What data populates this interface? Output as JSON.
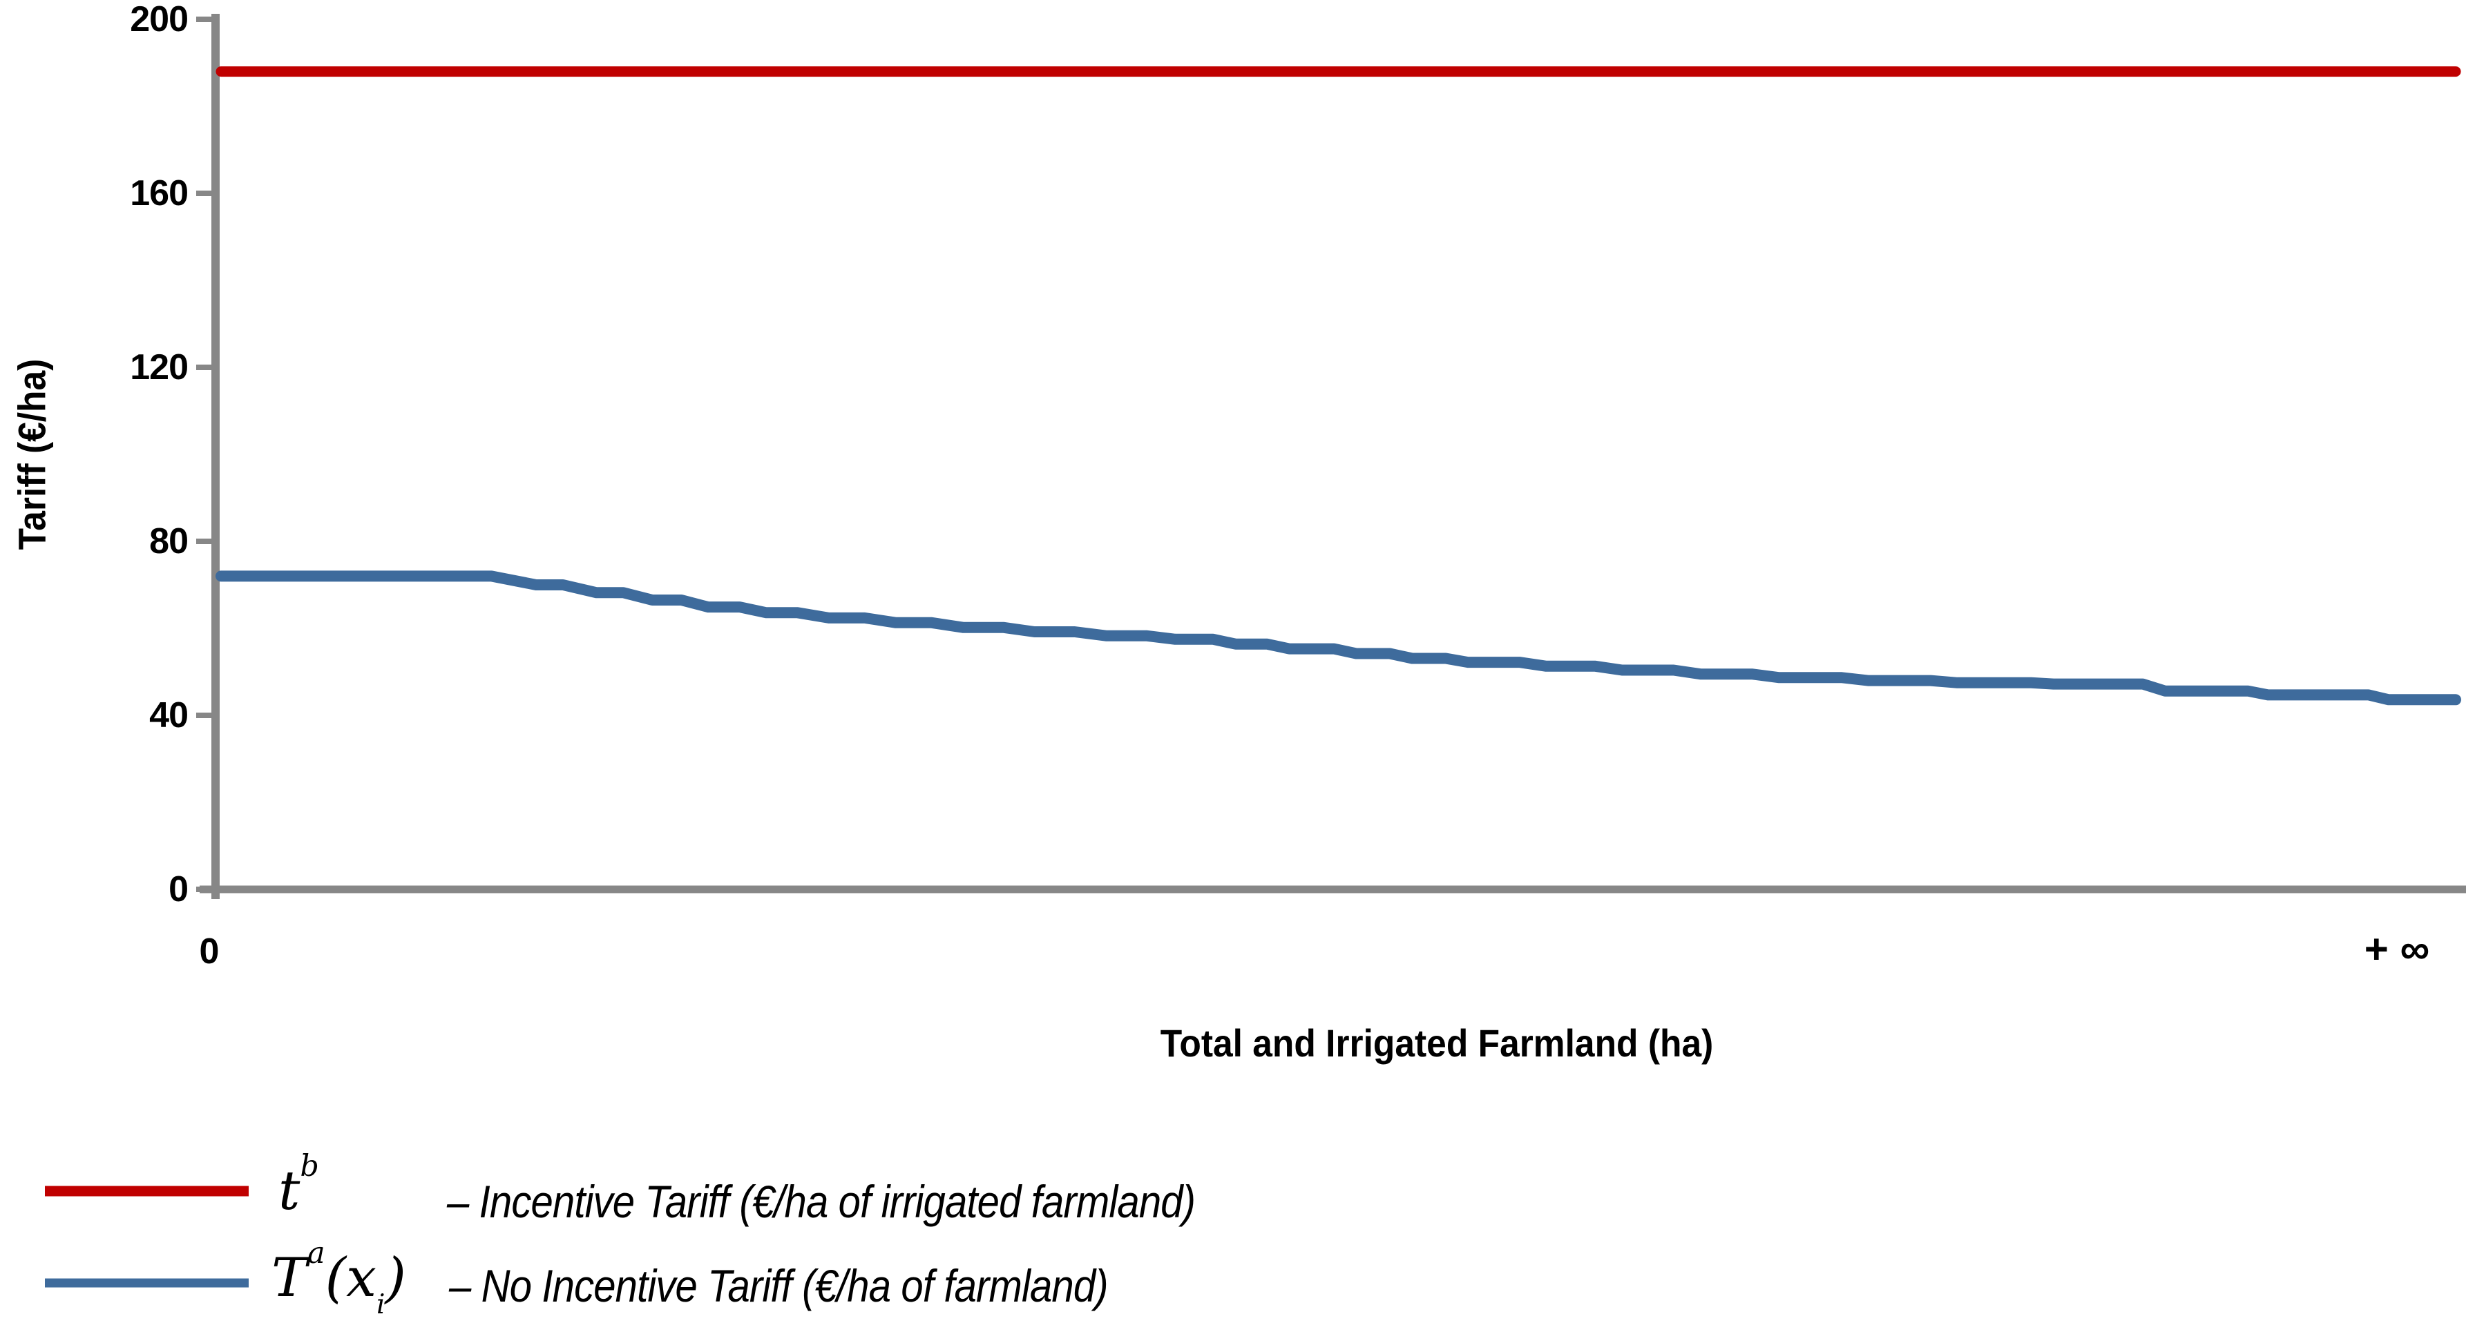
{
  "figure": {
    "y_axis_title": "Tariff  (€/ha)",
    "x_axis_title": "Total and Irrigated Farmland (ha)",
    "x_tick_left": "0",
    "x_tick_right": "+ ∞"
  },
  "legend": {
    "rows": [
      {
        "symbol": "t",
        "symbol_sup": "b",
        "label": "– Incentive Tariff (€/ha of irrigated farmland)"
      },
      {
        "symbol": "T",
        "symbol_sup": "a",
        "arg_open": "(",
        "arg_var": "x",
        "arg_sub": "i",
        "arg_close": ")",
        "label": "– No Incentive Tariff (€/ha of farmland)"
      }
    ]
  },
  "colors": {
    "incentive_red": "#C00000",
    "no_incentive_blue": "#3E6B9C",
    "axis_gray": "#878787",
    "text_black": "#000000"
  },
  "chart_data": {
    "type": "line",
    "title": "",
    "xlabel": "Total and Irrigated Farmland (ha)",
    "ylabel": "Tariff (€/ha)",
    "ylim": [
      0,
      200
    ],
    "yticks": [
      200,
      160,
      120,
      80,
      40,
      0
    ],
    "ytick_labels": [
      "200",
      "160",
      "120",
      "80",
      "40",
      "0"
    ],
    "x_axis_type": "unlabeled continuum from 0 to +∞ (x given below as percent 0–100 of axis length)",
    "x_range_labels": [
      "0",
      "+ ∞"
    ],
    "grid": false,
    "legend_position": "below chart, left",
    "series": [
      {
        "name": "tᵇ – Incentive Tariff (€/ha of irrigated farmland)",
        "color": "#C00000",
        "shape": "constant horizontal line",
        "value": 188,
        "points": [
          [
            0,
            188
          ],
          [
            100,
            188
          ]
        ]
      },
      {
        "name": "Tᵃ(xᵢ) – No Incentive Tariff (€/ha of farmland)",
        "color": "#3E6B9C",
        "shape": "stepwise decreasing curve, flat at 72 then decaying toward ~43.5",
        "points": [
          [
            0,
            72
          ],
          [
            12.1,
            72
          ],
          [
            14.1,
            70
          ],
          [
            15.3,
            70
          ],
          [
            16.8,
            68.2
          ],
          [
            18,
            68.2
          ],
          [
            19.3,
            66.5
          ],
          [
            20.6,
            66.5
          ],
          [
            21.8,
            64.9
          ],
          [
            23.2,
            64.9
          ],
          [
            24.4,
            63.6
          ],
          [
            25.8,
            63.6
          ],
          [
            27.2,
            62.4
          ],
          [
            28.8,
            62.4
          ],
          [
            30.2,
            61.3
          ],
          [
            31.8,
            61.3
          ],
          [
            33.2,
            60.2
          ],
          [
            35,
            60.2
          ],
          [
            36.4,
            59.2
          ],
          [
            38.2,
            59.2
          ],
          [
            39.6,
            58.3
          ],
          [
            41.4,
            58.3
          ],
          [
            42.7,
            57.5
          ],
          [
            44.4,
            57.5
          ],
          [
            45.4,
            56.4
          ],
          [
            46.8,
            56.4
          ],
          [
            47.8,
            55.3
          ],
          [
            49.8,
            55.3
          ],
          [
            50.8,
            54.2
          ],
          [
            52.3,
            54.2
          ],
          [
            53.3,
            53.1
          ],
          [
            54.8,
            53.1
          ],
          [
            55.8,
            52.2
          ],
          [
            58.1,
            52.2
          ],
          [
            59.3,
            51.3
          ],
          [
            61.5,
            51.3
          ],
          [
            62.7,
            50.4
          ],
          [
            65,
            50.4
          ],
          [
            66.2,
            49.5
          ],
          [
            68.5,
            49.5
          ],
          [
            69.7,
            48.7
          ],
          [
            72.5,
            48.7
          ],
          [
            73.7,
            48
          ],
          [
            76.5,
            48
          ],
          [
            77.7,
            47.5
          ],
          [
            81,
            47.5
          ],
          [
            82,
            47.2
          ],
          [
            86,
            47.2
          ],
          [
            87,
            45.6
          ],
          [
            90.7,
            45.6
          ],
          [
            91.6,
            44.7
          ],
          [
            96.1,
            44.7
          ],
          [
            97,
            43.6
          ],
          [
            100,
            43.6
          ]
        ]
      }
    ]
  }
}
